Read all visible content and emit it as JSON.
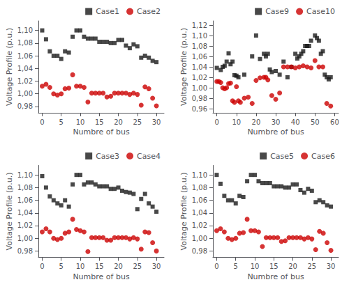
{
  "chart_data": [
    {
      "type": "scatter",
      "xlabel": "Numbre of bus",
      "ylabel": "Voltage Profile (p.u.)",
      "xlim": [
        -1,
        32
      ],
      "ylim": [
        0.97,
        1.115
      ],
      "xticks": [
        0,
        5,
        10,
        15,
        20,
        25,
        30
      ],
      "yticks": [
        {
          "value": 0.98,
          "label": "0,98"
        },
        {
          "value": 1.0,
          "label": "1,00"
        },
        {
          "value": 1.02,
          "label": "1,02"
        },
        {
          "value": 1.04,
          "label": "1,04"
        },
        {
          "value": 1.06,
          "label": "1,06"
        },
        {
          "value": 1.08,
          "label": "1,08"
        },
        {
          "value": 1.1,
          "label": "1,10"
        }
      ],
      "grid": false,
      "legend": "upper right",
      "series": [
        {
          "name": "Case1",
          "color": "#1a1a1a",
          "marker": "square",
          "x": [
            0,
            1,
            2,
            3,
            4,
            5,
            6,
            7,
            8,
            9,
            10,
            11,
            12,
            13,
            14,
            15,
            16,
            17,
            18,
            19,
            20,
            21,
            22,
            23,
            24,
            25,
            26,
            27,
            28,
            29,
            30
          ],
          "values": [
            1.1,
            1.086,
            1.067,
            1.06,
            1.06,
            1.055,
            1.067,
            1.065,
            1.09,
            1.1,
            1.1,
            1.09,
            1.087,
            1.087,
            1.087,
            1.082,
            1.082,
            1.082,
            1.08,
            1.08,
            1.085,
            1.085,
            1.076,
            1.072,
            1.078,
            1.075,
            1.057,
            1.06,
            1.057,
            1.052,
            1.05
          ]
        },
        {
          "name": "Case2",
          "color": "#cc0000",
          "marker": "circle",
          "x": [
            0,
            1,
            2,
            3,
            4,
            5,
            6,
            7,
            8,
            9,
            10,
            11,
            12,
            13,
            14,
            15,
            16,
            17,
            18,
            19,
            20,
            21,
            22,
            23,
            24,
            25,
            26,
            27,
            28,
            29,
            30
          ],
          "values": [
            1.012,
            1.015,
            1.01,
            1.0,
            0.998,
            1.0,
            1.008,
            1.009,
            1.03,
            1.012,
            1.012,
            1.01,
            0.987,
            1.001,
            1.001,
            1.001,
            1.001,
            0.995,
            0.996,
            1.001,
            1.001,
            1.001,
            1.001,
            0.999,
            1.001,
            0.999,
            0.982,
            1.011,
            1.008,
            0.993,
            0.981
          ]
        }
      ]
    },
    {
      "type": "scatter",
      "xlabel": "Numbre of bus",
      "ylabel": "Voltage Profile (p.u.)",
      "xlim": [
        -2,
        62
      ],
      "ylim": [
        0.952,
        1.128
      ],
      "xticks": [
        0,
        10,
        20,
        30,
        40,
        50,
        60
      ],
      "yticks": [
        {
          "value": 0.96,
          "label": "0,96"
        },
        {
          "value": 0.98,
          "label": "0,98"
        },
        {
          "value": 1.0,
          "label": "1,00"
        },
        {
          "value": 1.02,
          "label": "1,02"
        },
        {
          "value": 1.04,
          "label": "1,04"
        },
        {
          "value": 1.06,
          "label": "1,06"
        },
        {
          "value": 1.08,
          "label": "1,08"
        },
        {
          "value": 1.1,
          "label": "1,10"
        },
        {
          "value": 1.12,
          "label": "1,12"
        }
      ],
      "grid": false,
      "legend": "upper right",
      "series": [
        {
          "name": "Case9",
          "color": "#1a1a1a",
          "marker": "square",
          "x": [
            0,
            2,
            3,
            4,
            5,
            6,
            7,
            8,
            9,
            10,
            11,
            14,
            18,
            20,
            22,
            24,
            25,
            26,
            27,
            28,
            30,
            32,
            34,
            36,
            38,
            40,
            41,
            42,
            43,
            44,
            45,
            46,
            47,
            48,
            50,
            51,
            52,
            53,
            54,
            55,
            56,
            57,
            58
          ],
          "values": [
            1.038,
            1.034,
            1.04,
            1.042,
            1.05,
            1.066,
            1.045,
            1.05,
            1.024,
            1.023,
            1.02,
            1.025,
            1.06,
            1.1,
            1.055,
            1.065,
            1.06,
            1.065,
            1.035,
            1.03,
            1.032,
            1.025,
            1.05,
            1.02,
            1.04,
            1.065,
            1.056,
            1.06,
            1.065,
            1.07,
            1.08,
            1.08,
            1.08,
            1.09,
            1.1,
            1.095,
            1.09,
            1.065,
            1.07,
            1.025,
            1.02,
            1.016,
            1.02
          ]
        },
        {
          "name": "Case10",
          "color": "#cc0000",
          "marker": "circle",
          "x": [
            0,
            1,
            2,
            3,
            4,
            5,
            6,
            7,
            8,
            9,
            10,
            11,
            12,
            14,
            16,
            18,
            20,
            22,
            24,
            25,
            26,
            28,
            30,
            32,
            34,
            36,
            38,
            40,
            42,
            44,
            46,
            48,
            50,
            52,
            54,
            56,
            58
          ],
          "values": [
            1.012,
            1.012,
            1.01,
            1.0,
            0.998,
            1.0,
            1.008,
            1.009,
            0.975,
            0.972,
            1.002,
            0.975,
            0.972,
            0.98,
            0.982,
            0.97,
            1.014,
            1.019,
            1.02,
            1.02,
            1.015,
            0.985,
            0.978,
            0.99,
            1.04,
            1.04,
            1.04,
            1.038,
            1.04,
            1.042,
            1.04,
            1.038,
            1.052,
            1.04,
            1.04,
            0.97,
            0.965
          ]
        }
      ]
    },
    {
      "type": "scatter",
      "xlabel": "Numbre of bus",
      "ylabel": "Voltage Profile (p.u.)",
      "xlim": [
        -1,
        32
      ],
      "ylim": [
        0.97,
        1.115
      ],
      "xticks": [
        0,
        5,
        10,
        15,
        20,
        25,
        30
      ],
      "yticks": [
        {
          "value": 0.98,
          "label": "0,98"
        },
        {
          "value": 1.0,
          "label": "1,00"
        },
        {
          "value": 1.02,
          "label": "1,02"
        },
        {
          "value": 1.04,
          "label": "1,04"
        },
        {
          "value": 1.06,
          "label": "1,06"
        },
        {
          "value": 1.08,
          "label": "1,08"
        },
        {
          "value": 1.1,
          "label": "1,10"
        }
      ],
      "grid": false,
      "legend": "upper right",
      "series": [
        {
          "name": "Case3",
          "color": "#1a1a1a",
          "marker": "square",
          "x": [
            0,
            1,
            2,
            3,
            4,
            5,
            6,
            7,
            8,
            9,
            10,
            11,
            12,
            13,
            14,
            15,
            16,
            17,
            18,
            19,
            20,
            21,
            22,
            23,
            24,
            25,
            26,
            27,
            28,
            29,
            30
          ],
          "values": [
            1.098,
            1.08,
            1.066,
            1.06,
            1.055,
            1.052,
            1.06,
            1.05,
            1.085,
            1.1,
            1.1,
            1.085,
            1.088,
            1.088,
            1.085,
            1.082,
            1.082,
            1.082,
            1.078,
            1.078,
            1.08,
            1.075,
            1.073,
            1.072,
            1.07,
            1.046,
            1.062,
            1.07,
            1.055,
            1.05,
            1.042
          ]
        },
        {
          "name": "Case4",
          "color": "#cc0000",
          "marker": "circle",
          "x": [
            0,
            1,
            2,
            3,
            4,
            5,
            6,
            7,
            8,
            9,
            10,
            11,
            12,
            13,
            14,
            15,
            16,
            17,
            18,
            19,
            20,
            21,
            22,
            23,
            24,
            25,
            26,
            27,
            28,
            29,
            30
          ],
          "values": [
            1.01,
            1.015,
            1.01,
            1.0,
            0.998,
            1.0,
            1.008,
            1.01,
            1.03,
            1.014,
            1.012,
            1.01,
            0.979,
            1.001,
            1.001,
            1.001,
            1.001,
            0.997,
            0.997,
            1.001,
            1.001,
            1.001,
            1.001,
            0.999,
            1.001,
            0.999,
            0.983,
            1.01,
            1.009,
            0.993,
            0.98
          ]
        }
      ]
    },
    {
      "type": "scatter",
      "xlabel": "Numbre of bus",
      "ylabel": "Voltage Profile (p.u.)",
      "xlim": [
        -1,
        32
      ],
      "ylim": [
        0.97,
        1.115
      ],
      "xticks": [
        0,
        5,
        10,
        15,
        20,
        25,
        30
      ],
      "yticks": [
        {
          "value": 0.98,
          "label": "0,98"
        },
        {
          "value": 1.0,
          "label": "1,00"
        },
        {
          "value": 1.02,
          "label": "1,02"
        },
        {
          "value": 1.04,
          "label": "1,04"
        },
        {
          "value": 1.06,
          "label": "1,06"
        },
        {
          "value": 1.08,
          "label": "1,08"
        },
        {
          "value": 1.1,
          "label": "1,10"
        }
      ],
      "grid": false,
      "legend": "upper right",
      "series": [
        {
          "name": "Case5",
          "color": "#1a1a1a",
          "marker": "square",
          "x": [
            0,
            1,
            2,
            3,
            4,
            5,
            6,
            7,
            8,
            9,
            10,
            11,
            12,
            13,
            14,
            15,
            16,
            17,
            18,
            19,
            20,
            21,
            22,
            23,
            24,
            25,
            26,
            27,
            28,
            29,
            30
          ],
          "values": [
            1.1,
            1.086,
            1.067,
            1.06,
            1.06,
            1.055,
            1.067,
            1.065,
            1.09,
            1.1,
            1.1,
            1.09,
            1.087,
            1.087,
            1.087,
            1.082,
            1.082,
            1.082,
            1.08,
            1.08,
            1.085,
            1.085,
            1.076,
            1.072,
            1.078,
            1.075,
            1.057,
            1.06,
            1.057,
            1.052,
            1.05
          ]
        },
        {
          "name": "Case6",
          "color": "#cc0000",
          "marker": "circle",
          "x": [
            0,
            1,
            2,
            3,
            4,
            5,
            6,
            7,
            8,
            9,
            10,
            11,
            12,
            13,
            14,
            15,
            16,
            17,
            18,
            19,
            20,
            21,
            22,
            23,
            24,
            25,
            26,
            27,
            28,
            29,
            30
          ],
          "values": [
            1.012,
            1.015,
            1.01,
            1.0,
            0.998,
            1.0,
            1.008,
            1.009,
            1.03,
            1.012,
            1.012,
            1.01,
            0.987,
            1.001,
            1.001,
            1.001,
            1.001,
            0.995,
            0.996,
            1.001,
            1.001,
            1.001,
            1.001,
            0.999,
            1.001,
            0.999,
            0.982,
            1.011,
            1.008,
            0.993,
            0.981
          ]
        }
      ]
    }
  ]
}
